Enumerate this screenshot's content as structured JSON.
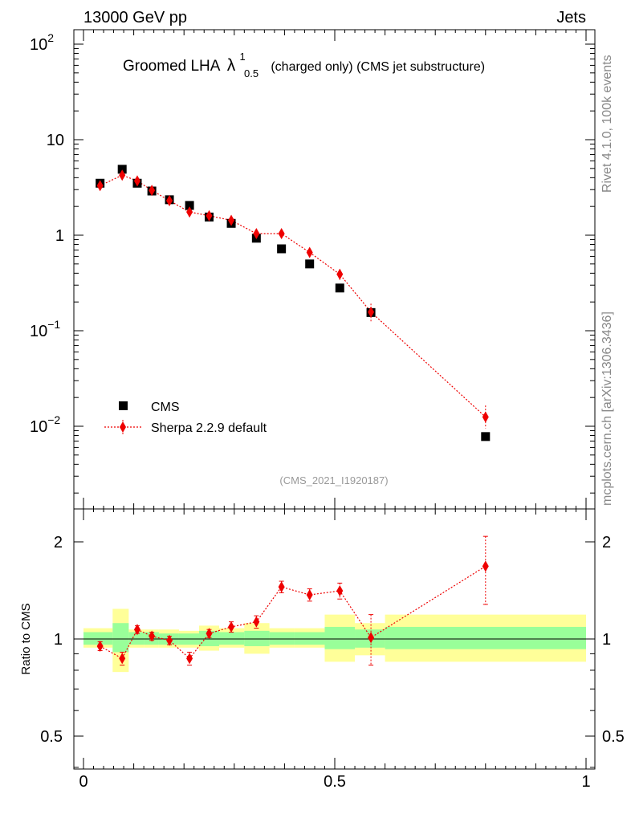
{
  "header": {
    "beam": "13000 GeV pp",
    "process": "Jets"
  },
  "side": {
    "rivet": "Rivet 4.1.0,  100k events",
    "mcplots": "mcplots.cern.ch [arXiv:1306.3436]"
  },
  "title": {
    "main": "Groomed LHA",
    "symbol": "λ",
    "sup": "1",
    "sub": "0.5",
    "rest": "(charged only) (CMS jet substructure)"
  },
  "analysis_id": "(CMS_2021_I1920187)",
  "legend": {
    "data_label": "CMS",
    "mc_label": "Sherpa 2.2.9 default"
  },
  "colors": {
    "data": "#000000",
    "mc": "#ee0000",
    "band_inner": "#99ff99",
    "band_outer": "#ffff99"
  },
  "chart_data": [
    {
      "type": "scatter",
      "panel": "main",
      "yscale": "log",
      "xlim": [
        0,
        1
      ],
      "ylim": [
        0.001,
        150
      ],
      "xlabel": "",
      "ylabel": "",
      "y_ticks": [
        {
          "base": "10",
          "exp": "2",
          "value": 100
        },
        {
          "base": "10",
          "exp": "",
          "value": 10
        },
        {
          "base": "1",
          "exp": "",
          "value": 1
        },
        {
          "base": "10",
          "exp": "−1",
          "value": 0.1
        },
        {
          "base": "10",
          "exp": "−2",
          "value": 0.01
        }
      ],
      "series": [
        {
          "name": "CMS",
          "style": "square",
          "x": [
            0.033,
            0.077,
            0.107,
            0.136,
            0.171,
            0.211,
            0.25,
            0.294,
            0.344,
            0.394,
            0.45,
            0.51,
            0.572,
            0.8
          ],
          "y": [
            3.5,
            4.9,
            3.5,
            2.9,
            2.35,
            2.05,
            1.55,
            1.33,
            0.93,
            0.72,
            0.5,
            0.28,
            0.155,
            0.0078
          ]
        },
        {
          "name": "Sherpa 2.2.9 default",
          "style": "diamond-dotted-line",
          "x": [
            0.033,
            0.077,
            0.107,
            0.136,
            0.171,
            0.211,
            0.25,
            0.294,
            0.344,
            0.394,
            0.45,
            0.51,
            0.572,
            0.8
          ],
          "y": [
            3.3,
            4.25,
            3.7,
            2.95,
            2.3,
            1.75,
            1.6,
            1.43,
            1.04,
            1.04,
            0.66,
            0.39,
            0.157,
            0.0125
          ],
          "err_low": [
            0.1,
            0.15,
            0.12,
            0.1,
            0.08,
            0.07,
            0.06,
            0.06,
            0.05,
            0.05,
            0.04,
            0.05,
            0.035,
            0.003
          ],
          "err_high": [
            0.1,
            0.15,
            0.12,
            0.1,
            0.08,
            0.07,
            0.06,
            0.06,
            0.05,
            0.05,
            0.04,
            0.05,
            0.035,
            0.004
          ]
        }
      ]
    },
    {
      "type": "scatter",
      "panel": "ratio",
      "xlim": [
        0,
        1
      ],
      "ylim": [
        0.4,
        2.3
      ],
      "xlabel": "",
      "ylabel": "Ratio to CMS",
      "x_tick_labels": [
        "0",
        "0.5",
        "1"
      ],
      "x_tick_values": [
        0,
        0.5,
        1
      ],
      "y_tick_labels": [
        "0.5",
        "1",
        "2"
      ],
      "y_tick_values": [
        0.5,
        1,
        2
      ],
      "reference_line": 1,
      "bins": [
        {
          "lo": 0.0,
          "hi": 0.058,
          "inner": [
            0.96,
            1.05
          ],
          "outer": [
            0.94,
            1.08
          ]
        },
        {
          "lo": 0.058,
          "hi": 0.09,
          "inner": [
            0.91,
            1.12
          ],
          "outer": [
            0.79,
            1.24
          ]
        },
        {
          "lo": 0.09,
          "hi": 0.12,
          "inner": [
            0.96,
            1.05
          ],
          "outer": [
            0.94,
            1.07
          ]
        },
        {
          "lo": 0.12,
          "hi": 0.15,
          "inner": [
            0.96,
            1.05
          ],
          "outer": [
            0.94,
            1.07
          ]
        },
        {
          "lo": 0.15,
          "hi": 0.19,
          "inner": [
            0.96,
            1.04
          ],
          "outer": [
            0.94,
            1.07
          ]
        },
        {
          "lo": 0.19,
          "hi": 0.23,
          "inner": [
            0.96,
            1.04
          ],
          "outer": [
            0.94,
            1.06
          ]
        },
        {
          "lo": 0.23,
          "hi": 0.27,
          "inner": [
            0.95,
            1.06
          ],
          "outer": [
            0.92,
            1.1
          ]
        },
        {
          "lo": 0.27,
          "hi": 0.32,
          "inner": [
            0.96,
            1.05
          ],
          "outer": [
            0.94,
            1.08
          ]
        },
        {
          "lo": 0.32,
          "hi": 0.37,
          "inner": [
            0.95,
            1.06
          ],
          "outer": [
            0.9,
            1.12
          ]
        },
        {
          "lo": 0.37,
          "hi": 0.42,
          "inner": [
            0.96,
            1.05
          ],
          "outer": [
            0.94,
            1.08
          ]
        },
        {
          "lo": 0.42,
          "hi": 0.48,
          "inner": [
            0.96,
            1.05
          ],
          "outer": [
            0.94,
            1.08
          ]
        },
        {
          "lo": 0.48,
          "hi": 0.54,
          "inner": [
            0.93,
            1.09
          ],
          "outer": [
            0.85,
            1.19
          ]
        },
        {
          "lo": 0.54,
          "hi": 0.6,
          "inner": [
            0.94,
            1.07
          ],
          "outer": [
            0.89,
            1.12
          ]
        },
        {
          "lo": 0.6,
          "hi": 1.0,
          "inner": [
            0.93,
            1.09
          ],
          "outer": [
            0.85,
            1.19
          ]
        }
      ],
      "series": [
        {
          "name": "Sherpa 2.2.9 default",
          "x": [
            0.033,
            0.077,
            0.107,
            0.136,
            0.171,
            0.211,
            0.25,
            0.294,
            0.344,
            0.394,
            0.45,
            0.51,
            0.572,
            0.8
          ],
          "y": [
            0.95,
            0.87,
            1.07,
            1.02,
            0.99,
            0.87,
            1.04,
            1.09,
            1.13,
            1.45,
            1.37,
            1.41,
            1.01,
            1.68
          ],
          "err_low": [
            0.03,
            0.04,
            0.03,
            0.03,
            0.03,
            0.04,
            0.03,
            0.04,
            0.05,
            0.06,
            0.06,
            0.08,
            0.18,
            0.4
          ],
          "err_high": [
            0.03,
            0.04,
            0.03,
            0.03,
            0.03,
            0.04,
            0.03,
            0.04,
            0.05,
            0.06,
            0.06,
            0.08,
            0.18,
            0.4
          ]
        }
      ]
    }
  ]
}
